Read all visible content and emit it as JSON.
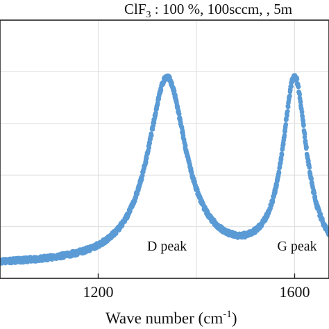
{
  "chart_data": {
    "type": "scatter",
    "title_prefix": "ClF",
    "title_sub": "3",
    "title_rest": " : 100 %, 100sccm, , 5m",
    "xlabel_main": "Wave number (cm",
    "xlabel_sup": "-1",
    "xlabel_end": ")",
    "xlim": [
      1000,
      1670
    ],
    "ylim": [
      0,
      1.0
    ],
    "x_ticks": [
      {
        "value": 1200,
        "label": "1200"
      },
      {
        "value": 1600,
        "label": "1600"
      }
    ],
    "grid": true,
    "annotations": [
      {
        "text": "D peak",
        "x": 1340
      },
      {
        "text": "G peak",
        "x": 1605
      }
    ],
    "series": [
      {
        "color": "#5b9bd5",
        "peaks": [
          {
            "center": 1340,
            "height": 0.72,
            "width": 48
          },
          {
            "center": 1600,
            "height": 0.71,
            "width": 30
          }
        ],
        "baseline": 0.05,
        "x_range": [
          1000,
          1670
        ],
        "n_points": 1500
      }
    ]
  }
}
